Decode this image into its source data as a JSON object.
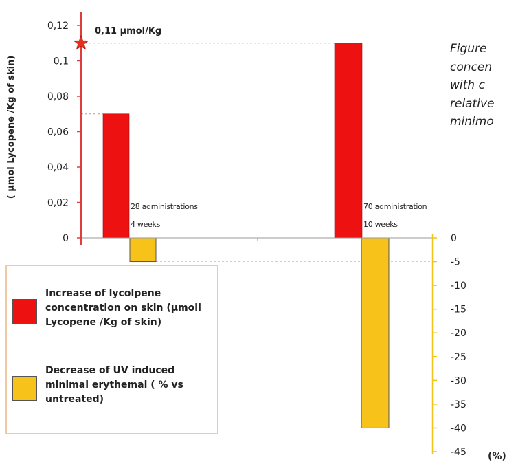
{
  "caption_lines": [
    "Figure",
    "concen",
    "with  c",
    "relative",
    "minimo"
  ],
  "chart_data": {
    "type": "bar",
    "categories": [
      "28 administrations 4 weeks",
      "70 administration 10 weeks"
    ],
    "series": [
      {
        "name": "Increase of lycolpene concentration on skin (µmoli Lycopene /Kg of skin)",
        "axis": "left",
        "values": [
          0.07,
          0.11
        ],
        "color": "#ee1111"
      },
      {
        "name": "Decrease of UV induced minimal erythemal ( % vs untreated)",
        "axis": "right",
        "values": [
          -5,
          -40
        ],
        "color": "#f7c21a"
      }
    ],
    "left_axis": {
      "label": "( µmol Lycopene /Kg of skin)",
      "ylim": [
        0,
        0.12
      ],
      "ticks": [
        "0",
        "0,02",
        "0,04",
        "0,06",
        "0,08",
        "0,1",
        "0,12"
      ],
      "color": "#e03c3c"
    },
    "right_axis": {
      "label": "(%)",
      "ylim": [
        -45,
        0
      ],
      "ticks": [
        "0",
        "-5",
        "-10",
        "-15",
        "-20",
        "-25",
        "-30",
        "-35",
        "-40",
        "-45"
      ],
      "color": "#f0c419"
    },
    "category_labels": [
      {
        "line1": "28 administrations",
        "line2": "4 weeks"
      },
      {
        "line1": "70 administration",
        "line2": "10 weeks"
      }
    ],
    "annotation": "0,11 µmol/Kg",
    "grid": false,
    "legend_position": "bottom-left"
  },
  "legend": {
    "items": [
      {
        "text": "Increase of lycolpene concentration on skin (µmoli Lycopene /Kg of skin)",
        "color": "#ee1111"
      },
      {
        "text": "Decrease of UV induced minimal erythemal ( % vs untreated)",
        "color": "#f7c21a"
      }
    ]
  }
}
